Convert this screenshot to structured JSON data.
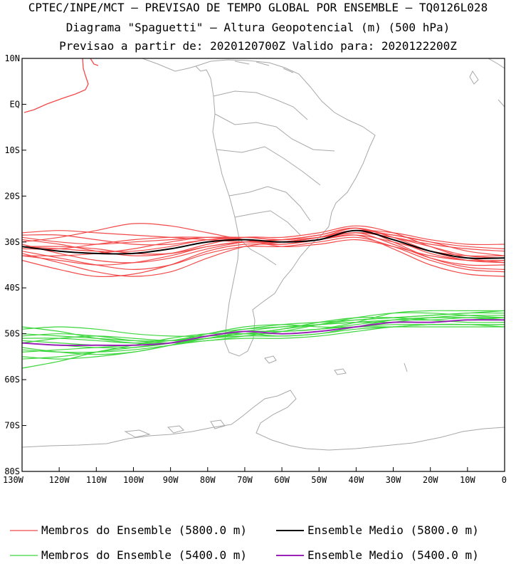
{
  "header": {
    "line1": "CPTEC/INPE/MCT – PREVISAO DE TEMPO GLOBAL POR ENSEMBLE – TQ0126L028",
    "line2": "Diagrama \"Spaguetti\" – Altura Geopotencial (m) (500 hPa)",
    "line3": "Previsao a partir de: 2020120700Z  Valido para: 2020122200Z"
  },
  "map": {
    "lon_range": [
      -130,
      0
    ],
    "lat_range": [
      -80,
      10
    ],
    "lat_ticks": [
      {
        "value": 10,
        "label": "10N"
      },
      {
        "value": 0,
        "label": "EQ"
      },
      {
        "value": -10,
        "label": "10S"
      },
      {
        "value": -20,
        "label": "20S"
      },
      {
        "value": -30,
        "label": "30S"
      },
      {
        "value": -40,
        "label": "40S"
      },
      {
        "value": -50,
        "label": "50S"
      },
      {
        "value": -60,
        "label": "60S"
      },
      {
        "value": -70,
        "label": "70S"
      },
      {
        "value": -80,
        "label": "80S"
      }
    ],
    "lon_ticks": [
      {
        "value": -130,
        "label": "130W"
      },
      {
        "value": -120,
        "label": "120W"
      },
      {
        "value": -110,
        "label": "110W"
      },
      {
        "value": -100,
        "label": "100W"
      },
      {
        "value": -90,
        "label": "90W"
      },
      {
        "value": -80,
        "label": "80W"
      },
      {
        "value": -70,
        "label": "70W"
      },
      {
        "value": -60,
        "label": "60W"
      },
      {
        "value": -50,
        "label": "50W"
      },
      {
        "value": -40,
        "label": "40W"
      },
      {
        "value": -30,
        "label": "30W"
      },
      {
        "value": -20,
        "label": "20W"
      },
      {
        "value": -10,
        "label": "10W"
      },
      {
        "value": 0,
        "label": "0"
      }
    ],
    "coast_color": "#a8a8a8",
    "members_5800_color": "#f24a4a",
    "mean_5800_color": "#000000",
    "members_5400_color": "#3ed63e",
    "mean_5400_color": "#9a22b8"
  },
  "chart_data": {
    "type": "line",
    "x_units": "longitude (deg, negative = W)",
    "y_units": "latitude (deg, negative = S)",
    "x": [
      -130,
      -120,
      -110,
      -100,
      -90,
      -80,
      -70,
      -60,
      -50,
      -40,
      -30,
      -20,
      -10,
      0
    ],
    "series": [
      {
        "name": "Membros do Ensemble (5800.0 m)",
        "group": "m5800",
        "y": [
          -31,
          -31.5,
          -32,
          -32,
          -31,
          -29.5,
          -29.5,
          -30,
          -29,
          -27.5,
          -29.5,
          -32.5,
          -34,
          -34
        ]
      },
      {
        "group": "m5800",
        "y": [
          -29,
          -30,
          -30.5,
          -30,
          -29.5,
          -29,
          -29,
          -29.5,
          -28.5,
          -27,
          -29,
          -31,
          -33,
          -33.5
        ]
      },
      {
        "group": "m5800",
        "y": [
          -33,
          -34,
          -35,
          -34.5,
          -33,
          -31,
          -30,
          -30.5,
          -29.5,
          -28,
          -30.5,
          -33.5,
          -35,
          -35
        ]
      },
      {
        "group": "m5800",
        "y": [
          -28,
          -27.5,
          -28,
          -28.5,
          -29,
          -29.5,
          -30,
          -30,
          -29,
          -28,
          -29,
          -30.5,
          -31.5,
          -32
        ]
      },
      {
        "group": "m5800",
        "y": [
          -32,
          -33.5,
          -35,
          -36,
          -35,
          -32.5,
          -31,
          -31,
          -30,
          -29,
          -31,
          -34,
          -36,
          -36.5
        ]
      },
      {
        "group": "m5800",
        "y": [
          -30,
          -29,
          -27.5,
          -26,
          -26.5,
          -28,
          -29.5,
          -30,
          -29.5,
          -28.5,
          -30,
          -32,
          -33,
          -33
        ]
      },
      {
        "group": "m5800",
        "y": [
          -34,
          -36,
          -37.5,
          -37,
          -35,
          -32,
          -30.5,
          -30.5,
          -29.5,
          -28.5,
          -31.5,
          -35,
          -37,
          -37.5
        ]
      },
      {
        "group": "m5800",
        "y": [
          -31,
          -31,
          -31.5,
          -32.5,
          -32.5,
          -31,
          -30,
          -30,
          -29,
          -27.5,
          -28.5,
          -30,
          -31,
          -31.5
        ]
      },
      {
        "group": "m5800",
        "y": [
          -29.5,
          -30.5,
          -32,
          -33,
          -32.5,
          -30.5,
          -29,
          -29,
          -28,
          -26.5,
          -28,
          -31,
          -33.5,
          -34.5
        ]
      },
      {
        "group": "m5800",
        "y": [
          -33,
          -33,
          -32.5,
          -31.5,
          -30,
          -29,
          -29.5,
          -31,
          -30.5,
          -29.5,
          -31,
          -33,
          -34,
          -34
        ]
      },
      {
        "group": "m5800",
        "y": [
          -30.5,
          -32.5,
          -34,
          -34.5,
          -33.5,
          -31.5,
          -30,
          -29.5,
          -28.5,
          -27,
          -30,
          -33.5,
          -35.5,
          -36
        ]
      },
      {
        "group": "m5800",
        "y": [
          -28.5,
          -28.5,
          -29.5,
          -30.5,
          -30.5,
          -29.5,
          -29,
          -29.5,
          -29,
          -28,
          -28.5,
          -30,
          -32,
          -33
        ]
      },
      {
        "group": "m5800",
        "y": [
          -32.5,
          -34.5,
          -36.5,
          -37.5,
          -36.5,
          -33.5,
          -31,
          -30,
          -29,
          -27,
          -29,
          -32,
          -34,
          -34.5
        ]
      },
      {
        "group": "m5800",
        "y": [
          -31.5,
          -31.5,
          -30.5,
          -29.5,
          -29,
          -29,
          -29.5,
          -30,
          -29,
          -27.5,
          -28,
          -29.5,
          -30.5,
          -30.5
        ]
      },
      {
        "name": "Ensemble Medio (5800.0 m)",
        "group": "mean5800",
        "y": [
          -31,
          -32,
          -32.5,
          -32.5,
          -31.5,
          -30,
          -29.5,
          -30,
          -29.5,
          -27.5,
          -29.5,
          -32,
          -33.5,
          -33.5
        ]
      },
      {
        "name": "Membros do Ensemble (5400.0 m)",
        "group": "m5400",
        "y": [
          -52,
          -52.5,
          -53,
          -53,
          -52,
          -50,
          -49,
          -48.5,
          -48,
          -47.5,
          -47,
          -47,
          -46.5,
          -46.5
        ]
      },
      {
        "group": "m5400",
        "y": [
          -49,
          -48.5,
          -49,
          -50,
          -50.5,
          -50.5,
          -50,
          -49,
          -48,
          -47,
          -46.5,
          -46,
          -45.5,
          -45.5
        ]
      },
      {
        "group": "m5400",
        "y": [
          -55,
          -55.5,
          -55,
          -54,
          -52.5,
          -51,
          -50,
          -50,
          -49.5,
          -48.5,
          -48,
          -48,
          -48,
          -48
        ]
      },
      {
        "group": "m5400",
        "y": [
          -51,
          -51,
          -51.5,
          -52,
          -51.5,
          -50,
          -48.5,
          -48,
          -48.5,
          -48.5,
          -47.5,
          -46.5,
          -46,
          -46
        ]
      },
      {
        "group": "m5400",
        "y": [
          -53,
          -54,
          -54.5,
          -54,
          -52.5,
          -50.5,
          -49.5,
          -49.5,
          -49,
          -48,
          -47,
          -46.5,
          -46.5,
          -47
        ]
      },
      {
        "group": "m5400",
        "y": [
          -50,
          -50.5,
          -51,
          -51.5,
          -51.5,
          -50.5,
          -49.5,
          -49.5,
          -49,
          -47.5,
          -45.5,
          -45,
          -45,
          -45
        ]
      },
      {
        "group": "m5400",
        "y": [
          -57.5,
          -56,
          -54,
          -52.5,
          -51,
          -50,
          -50,
          -50.5,
          -50,
          -49,
          -48.5,
          -48,
          -48,
          -48.5
        ]
      },
      {
        "group": "m5400",
        "y": [
          -52,
          -51,
          -50.5,
          -51,
          -51.5,
          -51,
          -50,
          -49,
          -47.5,
          -46.5,
          -46.5,
          -47,
          -47.5,
          -47.5
        ]
      },
      {
        "group": "m5400",
        "y": [
          -54,
          -53.5,
          -53,
          -52.5,
          -52,
          -51,
          -50.5,
          -50.5,
          -50,
          -48.5,
          -47,
          -46.5,
          -46.5,
          -46.5
        ]
      },
      {
        "group": "m5400",
        "y": [
          -48.5,
          -49.5,
          -51,
          -52,
          -52,
          -51,
          -49.5,
          -48.5,
          -48,
          -47.5,
          -47.5,
          -47.5,
          -47,
          -46.5
        ]
      },
      {
        "group": "m5400",
        "y": [
          -53.5,
          -54,
          -54,
          -53.5,
          -52.5,
          -51.5,
          -51,
          -51,
          -50.5,
          -49.5,
          -48.5,
          -48,
          -48,
          -48
        ]
      },
      {
        "group": "m5400",
        "y": [
          -51.5,
          -52,
          -52.5,
          -52.5,
          -52,
          -50.5,
          -49,
          -48,
          -47.5,
          -47,
          -46.5,
          -46,
          -45.5,
          -45
        ]
      },
      {
        "group": "m5400",
        "y": [
          -55.5,
          -55,
          -54,
          -53,
          -52,
          -50.5,
          -49.5,
          -49.5,
          -49,
          -48.5,
          -48.5,
          -48.5,
          -48.5,
          -48.5
        ]
      },
      {
        "group": "m5400",
        "y": [
          -50.5,
          -50,
          -50.5,
          -51.5,
          -52,
          -51.5,
          -50.5,
          -49.5,
          -48,
          -46.5,
          -45.5,
          -45.5,
          -46,
          -46.5
        ]
      },
      {
        "name": "Ensemble Medio (5400.0 m)",
        "group": "mean5400",
        "y": [
          -52,
          -52.5,
          -52.5,
          -52.5,
          -52,
          -50.5,
          -49.5,
          -50,
          -49.5,
          -48.5,
          -47.5,
          -47.5,
          -47,
          -47
        ]
      }
    ]
  },
  "legend": {
    "members_5800": "Membros do Ensemble (5800.0 m)",
    "mean_5800": "Ensemble Medio (5800.0 m)",
    "members_5400": "Membros do Ensemble (5400.0 m)",
    "mean_5400": "Ensemble Medio (5400.0 m)"
  }
}
